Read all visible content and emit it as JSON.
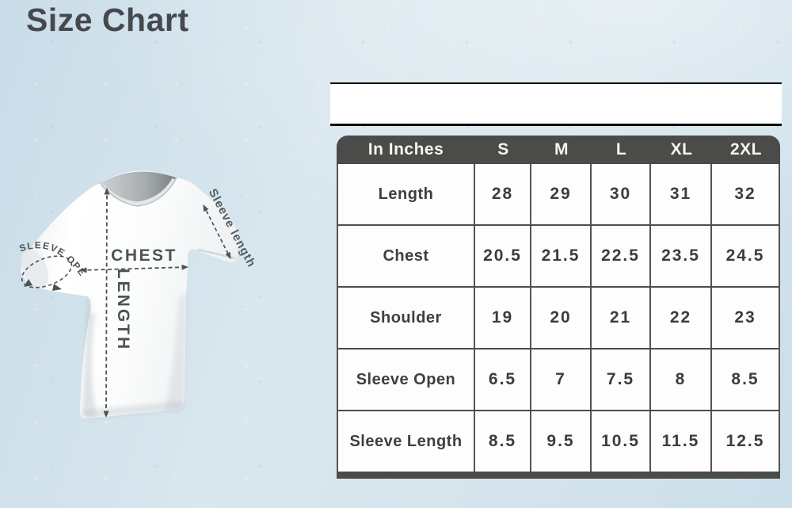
{
  "page": {
    "title": "Size Chart"
  },
  "diagram": {
    "labels": {
      "chest": "CHEST",
      "length": "LENGTH",
      "sleeve_length": "Sleeve length",
      "sleeve_open": "SLEEVE OPEN"
    }
  },
  "size_table": {
    "header": [
      "In Inches",
      "S",
      "M",
      "L",
      "XL",
      "2XL"
    ],
    "rows": [
      {
        "label": "Length",
        "values": [
          "28",
          "29",
          "30",
          "31",
          "32"
        ]
      },
      {
        "label": "Chest",
        "values": [
          "20.5",
          "21.5",
          "22.5",
          "23.5",
          "24.5"
        ]
      },
      {
        "label": "Shoulder",
        "values": [
          "19",
          "20",
          "21",
          "22",
          "23"
        ]
      },
      {
        "label": "Sleeve Open",
        "values": [
          "6.5",
          "7",
          "7.5",
          "8",
          "8.5"
        ]
      },
      {
        "label": "Sleeve Length",
        "values": [
          "8.5",
          "9.5",
          "10.5",
          "11.5",
          "12.5"
        ]
      }
    ]
  },
  "colors": {
    "background": "#d5e4ec",
    "table_header": "#4b4b49",
    "table_border": "#54544f",
    "text_dark": "#3f3f3f",
    "annotation": "#4d5257",
    "title": "#45494e"
  }
}
